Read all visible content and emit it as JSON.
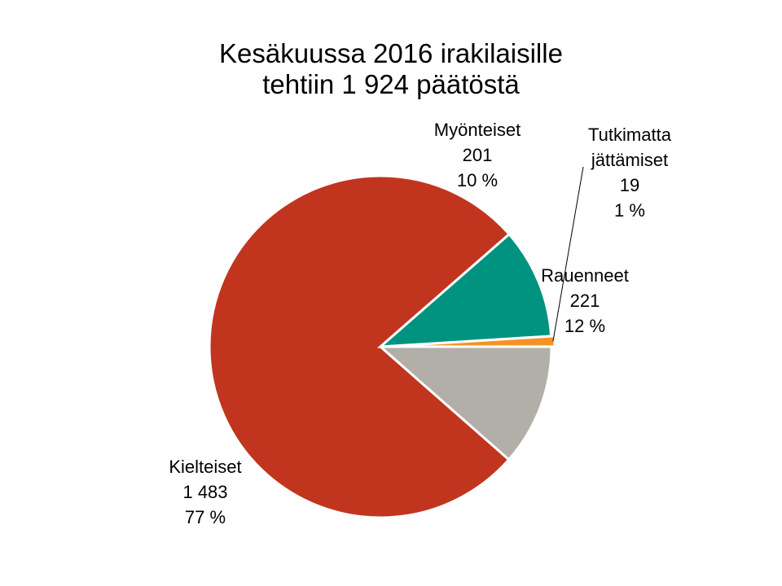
{
  "chart_data": {
    "type": "pie",
    "title_lines": [
      "Kesäkuussa 2016 irakilaisille",
      "tehtiin 1 924 päätöstä"
    ],
    "slices": [
      {
        "label_lines": [
          "Rauenneet"
        ],
        "value": 221,
        "value_text": "221",
        "percent_text": "12 %",
        "color": "#b1afa7"
      },
      {
        "label_lines": [
          "Kielteiset"
        ],
        "value": 1483,
        "value_text": "1 483",
        "percent_text": "77 %",
        "color": "#c1351f"
      },
      {
        "label_lines": [
          "Myönteiset"
        ],
        "value": 201,
        "value_text": "201",
        "percent_text": "10 %",
        "color": "#009380"
      },
      {
        "label_lines": [
          "Tutkimatta",
          "jättämiset"
        ],
        "value": 19,
        "value_text": "19",
        "percent_text": "1 %",
        "color": "#f39325"
      }
    ],
    "legend": "none"
  }
}
